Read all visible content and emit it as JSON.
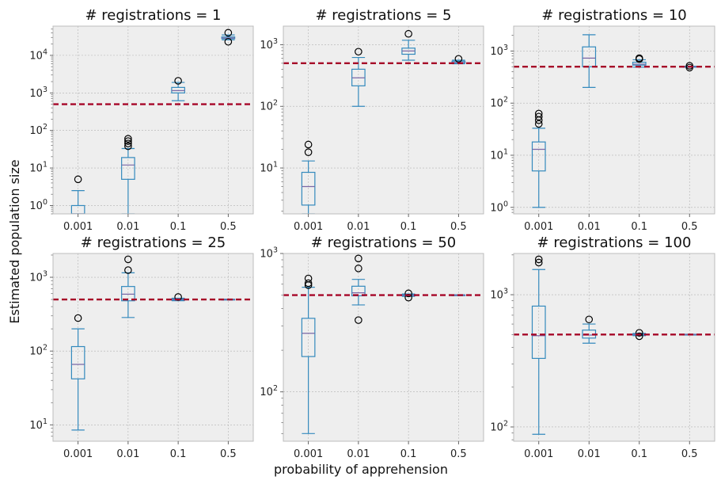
{
  "figure": {
    "ylabel": "Estimated population size",
    "xlabel": "probability of apprehension",
    "reference_line": {
      "value": 500,
      "color": "#A60628",
      "style": "dashed"
    },
    "colors": {
      "box": "#348ABD",
      "median": "#7A68A6",
      "panel_bg": "#EEEEEE",
      "grid": "#B2B2B2"
    }
  },
  "chart_data": [
    {
      "type": "box",
      "title": "# registrations = 1",
      "categories": [
        "0.001",
        "0.01",
        "0.1",
        "0.5"
      ],
      "yscale": "log",
      "ylim": [
        0.6,
        60000
      ],
      "yticks": [
        {
          "v": 1,
          "e": "0"
        },
        {
          "v": 10,
          "e": "1"
        },
        {
          "v": 100,
          "e": "2"
        },
        {
          "v": 1000,
          "e": "3"
        },
        {
          "v": 10000,
          "e": "4"
        }
      ],
      "boxes": [
        {
          "wlo": 0.6,
          "q1": 0.6,
          "med": 0.6,
          "q3": 1,
          "whi": 2.5,
          "fliers": [
            5
          ]
        },
        {
          "wlo": 0.6,
          "q1": 5,
          "med": 12,
          "q3": 19,
          "whi": 33,
          "fliers": [
            38,
            45,
            52,
            60
          ]
        },
        {
          "wlo": 620,
          "q1": 1000,
          "med": 1150,
          "q3": 1400,
          "whi": 1900,
          "fliers": [
            2100
          ]
        },
        {
          "wlo": 26000,
          "q1": 28000,
          "med": 29000,
          "q3": 31000,
          "whi": 35000,
          "fliers": [
            23000,
            40000
          ]
        }
      ]
    },
    {
      "type": "box",
      "title": "# registrations = 5",
      "categories": [
        "0.001",
        "0.01",
        "0.1",
        "0.5"
      ],
      "yscale": "log",
      "ylim": [
        1.8,
        2000
      ],
      "yticks": [
        {
          "v": 10,
          "e": "1"
        },
        {
          "v": 100,
          "e": "2"
        },
        {
          "v": 1000,
          "e": "3"
        }
      ],
      "boxes": [
        {
          "wlo": 1.8,
          "q1": 2.5,
          "med": 5,
          "q3": 8.5,
          "whi": 13,
          "fliers": [
            18,
            24
          ]
        },
        {
          "wlo": 100,
          "q1": 215,
          "med": 290,
          "q3": 400,
          "whi": 620,
          "fliers": [
            770
          ]
        },
        {
          "wlo": 560,
          "q1": 700,
          "med": 790,
          "q3": 880,
          "whi": 1180,
          "fliers": [
            1500
          ]
        },
        {
          "wlo": 490,
          "q1": 505,
          "med": 515,
          "q3": 540,
          "whi": 560,
          "fliers": [
            590
          ]
        }
      ]
    },
    {
      "type": "box",
      "title": "# registrations = 10",
      "categories": [
        "0.001",
        "0.01",
        "0.1",
        "0.5"
      ],
      "yscale": "log",
      "ylim": [
        0.75,
        3000
      ],
      "yticks": [
        {
          "v": 1,
          "e": "0"
        },
        {
          "v": 10,
          "e": "1"
        },
        {
          "v": 100,
          "e": "2"
        },
        {
          "v": 1000,
          "e": "3"
        }
      ],
      "boxes": [
        {
          "wlo": 1,
          "q1": 5,
          "med": 13,
          "q3": 18,
          "whi": 33,
          "fliers": [
            40,
            47,
            55,
            63
          ]
        },
        {
          "wlo": 200,
          "q1": 500,
          "med": 730,
          "q3": 1200,
          "whi": 2050,
          "fliers": []
        },
        {
          "wlo": 490,
          "q1": 535,
          "med": 560,
          "q3": 610,
          "whi": 680,
          "fliers": [
            700,
            730
          ]
        },
        {
          "wlo": 490,
          "q1": 495,
          "med": 500,
          "q3": 505,
          "whi": 510,
          "fliers": [
            480,
            520
          ]
        }
      ]
    },
    {
      "type": "box",
      "title": "# registrations = 25",
      "categories": [
        "0.001",
        "0.01",
        "0.1",
        "0.5"
      ],
      "yscale": "log",
      "ylim": [
        6,
        2100
      ],
      "yticks": [
        {
          "v": 10,
          "e": "1"
        },
        {
          "v": 100,
          "e": "2"
        },
        {
          "v": 1000,
          "e": "3"
        }
      ],
      "boxes": [
        {
          "wlo": 8.5,
          "q1": 42,
          "med": 66,
          "q3": 115,
          "whi": 200,
          "fliers": [
            280
          ]
        },
        {
          "wlo": 285,
          "q1": 480,
          "med": 590,
          "q3": 750,
          "whi": 1150,
          "fliers": [
            1250,
            1750
          ]
        },
        {
          "wlo": 480,
          "q1": 490,
          "med": 500,
          "q3": 510,
          "whi": 520,
          "fliers": [
            540
          ]
        },
        {
          "wlo": 495,
          "q1": 498,
          "med": 500,
          "q3": 502,
          "whi": 505,
          "fliers": []
        }
      ]
    },
    {
      "type": "box",
      "title": "# registrations = 50",
      "categories": [
        "0.001",
        "0.01",
        "0.1",
        "0.5"
      ],
      "yscale": "log",
      "ylim": [
        44,
        1000
      ],
      "yticks": [
        {
          "v": 100,
          "e": "2"
        },
        {
          "v": 1000,
          "e": "3"
        }
      ],
      "boxes": [
        {
          "wlo": 50,
          "q1": 180,
          "med": 265,
          "q3": 340,
          "whi": 570,
          "fliers": [
            590,
            610,
            660
          ]
        },
        {
          "wlo": 425,
          "q1": 495,
          "med": 520,
          "q3": 580,
          "whi": 650,
          "fliers": [
            330,
            780,
            920
          ]
        },
        {
          "wlo": 490,
          "q1": 495,
          "med": 500,
          "q3": 505,
          "whi": 510,
          "fliers": [
            480,
            515
          ]
        },
        {
          "wlo": 497,
          "q1": 499,
          "med": 500,
          "q3": 501,
          "whi": 503,
          "fliers": []
        }
      ]
    },
    {
      "type": "box",
      "title": "# registrations = 100",
      "categories": [
        "0.001",
        "0.01",
        "0.1",
        "0.5"
      ],
      "yscale": "log",
      "ylim": [
        78,
        2050
      ],
      "yticks": [
        {
          "v": 100,
          "e": "2"
        },
        {
          "v": 1000,
          "e": "3"
        }
      ],
      "boxes": [
        {
          "wlo": 88,
          "q1": 330,
          "med": 490,
          "q3": 820,
          "whi": 1550,
          "fliers": [
            1750,
            1850
          ]
        },
        {
          "wlo": 430,
          "q1": 470,
          "med": 495,
          "q3": 540,
          "whi": 600,
          "fliers": [
            650
          ]
        },
        {
          "wlo": 490,
          "q1": 495,
          "med": 500,
          "q3": 505,
          "whi": 510,
          "fliers": [
            485,
            515
          ]
        },
        {
          "wlo": 498,
          "q1": 499,
          "med": 500,
          "q3": 501,
          "whi": 502,
          "fliers": []
        }
      ]
    }
  ]
}
